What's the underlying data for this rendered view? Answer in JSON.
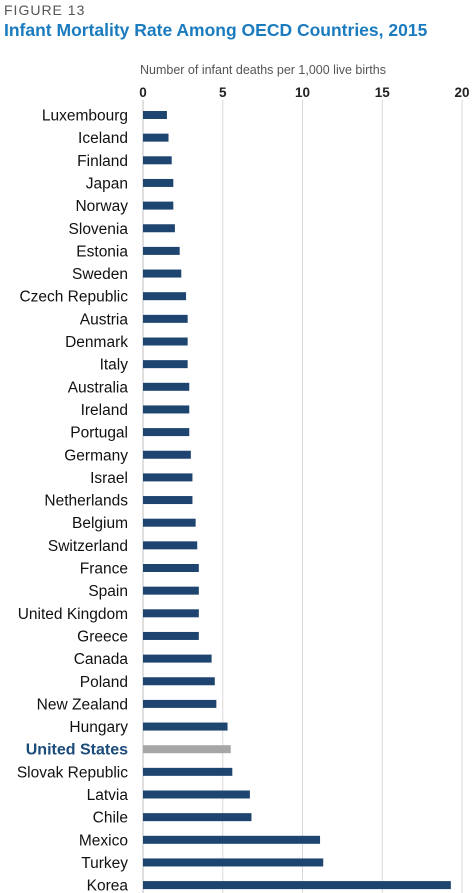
{
  "figure_label": "FIGURE 13",
  "colors": {
    "bar": "#1e4470",
    "highlight_bar": "#a6a6a6",
    "grid": "#d9d9d9",
    "title": "#1b7bbf",
    "highlight_label": "#1b4b7a"
  },
  "chart_data": {
    "type": "bar",
    "orientation": "horizontal",
    "title": "Infant Mortality Rate Among OECD Countries, 2015",
    "xlabel": "Number of infant deaths per 1,000 live births",
    "ylabel": "",
    "xlim": [
      0,
      20
    ],
    "xticks": [
      "0",
      "5",
      "10",
      "15",
      "20"
    ],
    "grid": true,
    "highlight": "United States",
    "categories": [
      "Luxembourg",
      "Iceland",
      "Finland",
      "Japan",
      "Norway",
      "Slovenia",
      "Estonia",
      "Sweden",
      "Czech Republic",
      "Austria",
      "Denmark",
      "Italy",
      "Australia",
      "Ireland",
      "Portugal",
      "Germany",
      "Israel",
      "Netherlands",
      "Belgium",
      "Switzerland",
      "France",
      "Spain",
      "United Kingdom",
      "Greece",
      "Canada",
      "Poland",
      "New Zealand",
      "Hungary",
      "United States",
      "Slovak Republic",
      "Latvia",
      "Chile",
      "Mexico",
      "Turkey",
      "Korea"
    ],
    "values": [
      1.5,
      1.6,
      1.8,
      1.9,
      1.9,
      2.0,
      2.3,
      2.4,
      2.7,
      2.8,
      2.8,
      2.8,
      2.9,
      2.9,
      2.9,
      3.0,
      3.1,
      3.1,
      3.3,
      3.4,
      3.5,
      3.5,
      3.5,
      3.5,
      4.3,
      4.5,
      4.6,
      5.3,
      5.5,
      5.6,
      6.7,
      6.8,
      11.1,
      11.3,
      19.3
    ]
  }
}
